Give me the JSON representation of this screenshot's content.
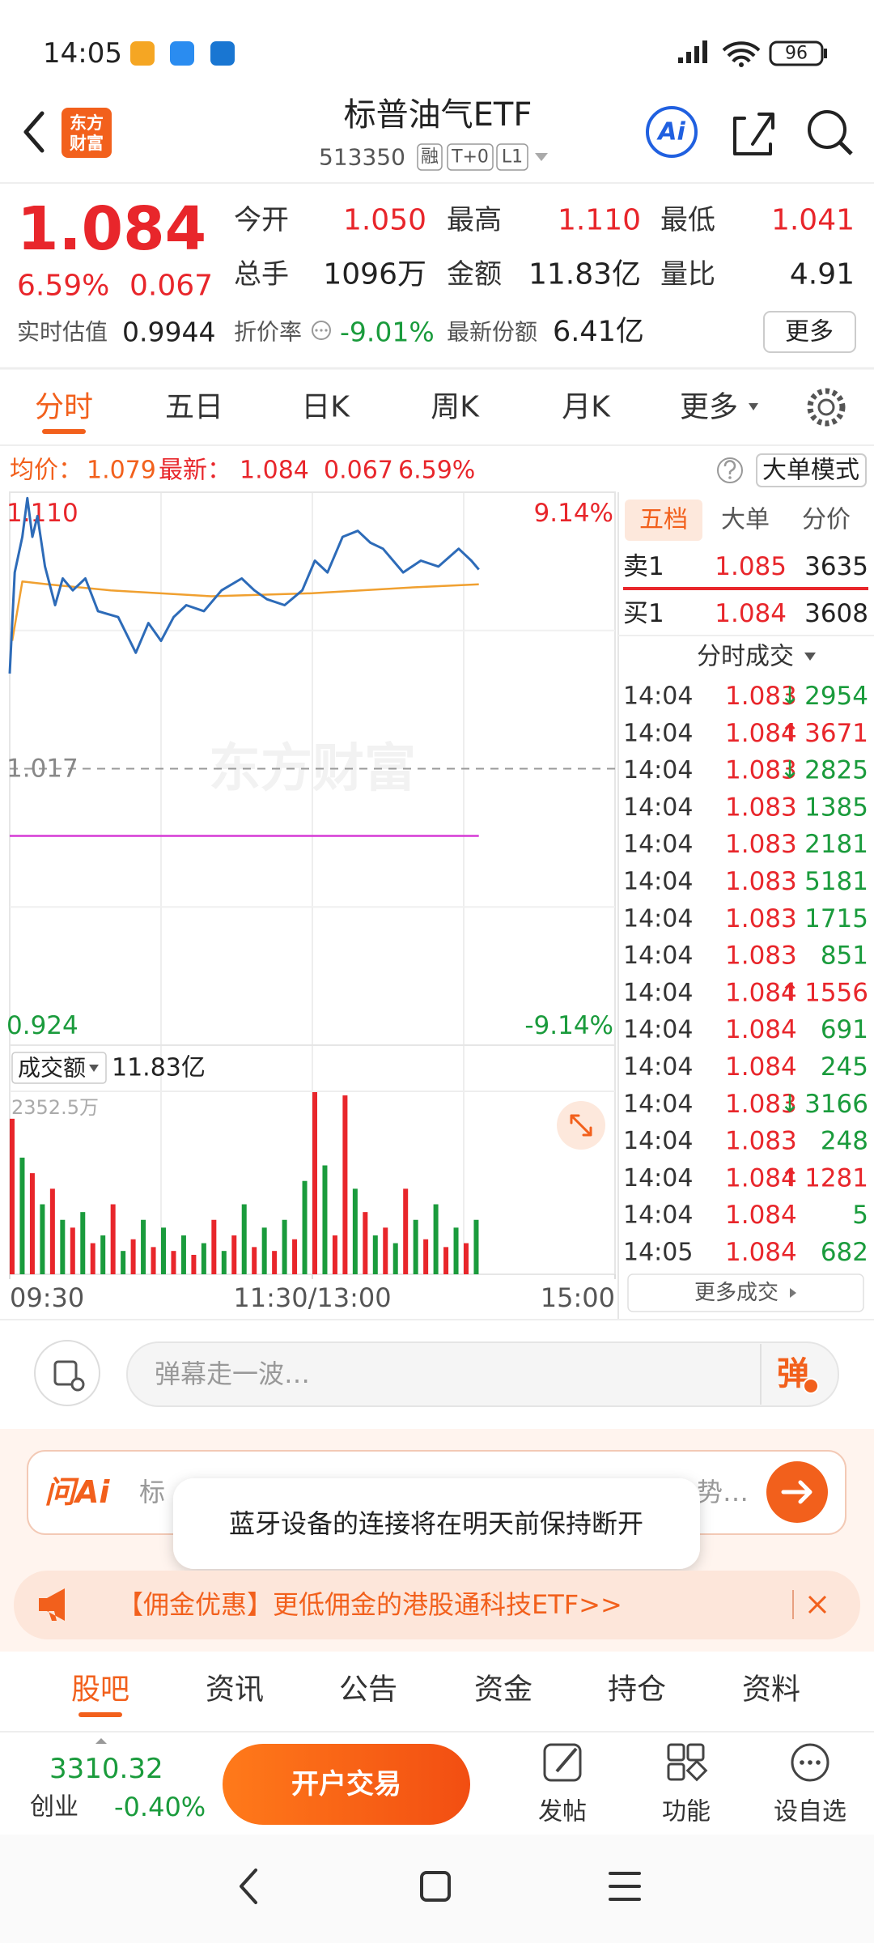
{
  "status_bar": {
    "time": "14:05",
    "battery": "96"
  },
  "header": {
    "logo": [
      "东方",
      "财富"
    ],
    "title": "标普油气ETF",
    "code": "513350",
    "badges": [
      "融",
      "T+0",
      "L1"
    ],
    "ai": "Ai"
  },
  "quote": {
    "price": "1.084",
    "change_pct": "6.59%",
    "change": "0.067",
    "stats": [
      {
        "label": "今开",
        "value": "1.050",
        "color": "#e8262b"
      },
      {
        "label": "最高",
        "value": "1.110",
        "color": "#e8262b"
      },
      {
        "label": "最低",
        "value": "1.041",
        "color": "#e8262b"
      },
      {
        "label": "总手",
        "value": "1096万",
        "color": "#222222"
      },
      {
        "label": "金额",
        "value": "11.83亿",
        "color": "#222222"
      },
      {
        "label": "量比",
        "value": "4.91",
        "color": "#222222"
      }
    ],
    "estimate_label": "实时估值",
    "estimate": "0.9944",
    "discount_label": "折价率",
    "discount": "-9.01%",
    "shares_label": "最新份额",
    "shares": "6.41亿",
    "more": "更多"
  },
  "tabs": {
    "items": [
      "分时",
      "五日",
      "日K",
      "周K",
      "月K",
      "更多"
    ],
    "active": 0
  },
  "summary": {
    "avg_label": "均价：",
    "avg": "1.079",
    "last_label": "最新：",
    "last": "1.084",
    "change": "0.067",
    "change_pct": "6.59%",
    "big_order": "大单模式"
  },
  "chart_data": [
    {
      "type": "line",
      "watermark": "东方财富",
      "xlim": [
        0,
        240
      ],
      "ylim": [
        0.924,
        1.11
      ],
      "yticks": [
        {
          "value": 1.11,
          "label": "1.110"
        },
        1.017,
        0.924
      ],
      "y2lim": [
        -9.14,
        9.14
      ],
      "y2ticks": [
        {
          "value": 9.14,
          "label": "9.14%"
        },
        {
          "value": -9.14,
          "label": "-9.14%"
        }
      ],
      "iopv": {
        "value": 0.9944,
        "color": "#d63ad6"
      },
      "series": [
        {
          "color": "#2d6bb8",
          "x": [
            0,
            2,
            5,
            7,
            9,
            11,
            14,
            18,
            21,
            25,
            30,
            35,
            43,
            50,
            55,
            60,
            65,
            70,
            77,
            84,
            92,
            97,
            102,
            109,
            116,
            121,
            126,
            132,
            138,
            143,
            148,
            156,
            163,
            170,
            178,
            183,
            186
          ],
          "values": [
            1.049,
            1.083,
            1.095,
            1.108,
            1.095,
            1.102,
            1.085,
            1.072,
            1.081,
            1.077,
            1.081,
            1.07,
            1.068,
            1.056,
            1.066,
            1.06,
            1.068,
            1.072,
            1.07,
            1.077,
            1.081,
            1.077,
            1.074,
            1.072,
            1.077,
            1.087,
            1.083,
            1.095,
            1.097,
            1.093,
            1.091,
            1.083,
            1.087,
            1.085,
            1.091,
            1.087,
            1.084
          ]
        },
        {
          "color": "#f0a030",
          "x": [
            1,
            5,
            15,
            40,
            80,
            120,
            160,
            186
          ],
          "values": [
            1.06,
            1.08,
            1.079,
            1.077,
            1.075,
            1.076,
            1.078,
            1.079
          ]
        }
      ]
    },
    {
      "type": "bar",
      "header": "成交额",
      "total": "11.83亿",
      "xlim": [
        0,
        240
      ],
      "ylim": [
        0,
        2352.5
      ],
      "yticks": [
        {
          "value": 2352.5,
          "label": "2352.5万"
        }
      ],
      "xticks": [
        {
          "value": 0,
          "label": "09:30"
        },
        {
          "value": 120,
          "label": "11:30/13:00"
        },
        {
          "value": 240,
          "label": "15:00"
        }
      ],
      "series": [
        {
          "color": "#e8262b",
          "x": [
            0,
            8,
            16,
            24,
            32,
            40,
            48,
            56,
            64,
            72,
            80,
            88,
            96,
            104,
            112,
            120,
            128,
            132,
            140,
            148,
            156,
            164,
            172,
            180
          ],
          "values": [
            2000,
            1300,
            1100,
            600,
            400,
            900,
            450,
            350,
            300,
            250,
            700,
            500,
            350,
            300,
            450,
            2352.5,
            500,
            2300,
            800,
            600,
            1100,
            450,
            350,
            400
          ]
        },
        {
          "color": "#1a9b3c",
          "x": [
            4,
            12,
            20,
            28,
            36,
            44,
            52,
            60,
            68,
            76,
            84,
            92,
            100,
            108,
            116,
            124,
            136,
            144,
            152,
            160,
            168,
            176,
            184
          ],
          "values": [
            1500,
            900,
            700,
            800,
            500,
            300,
            700,
            600,
            500,
            400,
            300,
            900,
            600,
            700,
            1200,
            1400,
            1100,
            500,
            400,
            700,
            900,
            600,
            700
          ]
        }
      ]
    }
  ],
  "order_book": {
    "tabs": [
      "五档",
      "大单",
      "分价"
    ],
    "active": 0,
    "asks": [
      {
        "label": "卖1",
        "price": "1.085",
        "volume": "3635"
      }
    ],
    "bids": [
      {
        "label": "买1",
        "price": "1.084",
        "volume": "3608"
      }
    ]
  },
  "trades": {
    "title": "分时成交",
    "more": "更多成交",
    "rows": [
      {
        "time": "14:04",
        "price": "1.083",
        "arrow": "↓",
        "volume": "2954",
        "color": "#1a9b3c"
      },
      {
        "time": "14:04",
        "price": "1.084",
        "arrow": "↑",
        "volume": "3671",
        "color": "#e8262b"
      },
      {
        "time": "14:04",
        "price": "1.083",
        "arrow": "↓",
        "volume": "2825",
        "color": "#1a9b3c"
      },
      {
        "time": "14:04",
        "price": "1.083",
        "volume": "1385",
        "color": "#1a9b3c"
      },
      {
        "time": "14:04",
        "price": "1.083",
        "volume": "2181",
        "color": "#1a9b3c"
      },
      {
        "time": "14:04",
        "price": "1.083",
        "volume": "5181",
        "color": "#1a9b3c"
      },
      {
        "time": "14:04",
        "price": "1.083",
        "volume": "1715",
        "color": "#1a9b3c"
      },
      {
        "time": "14:04",
        "price": "1.083",
        "volume": "851",
        "color": "#1a9b3c"
      },
      {
        "time": "14:04",
        "price": "1.084",
        "arrow": "↑",
        "volume": "1556",
        "color": "#e8262b"
      },
      {
        "time": "14:04",
        "price": "1.084",
        "volume": "691",
        "color": "#1a9b3c"
      },
      {
        "time": "14:04",
        "price": "1.084",
        "volume": "245",
        "color": "#1a9b3c"
      },
      {
        "time": "14:04",
        "price": "1.083",
        "arrow": "↓",
        "volume": "3166",
        "color": "#1a9b3c"
      },
      {
        "time": "14:04",
        "price": "1.083",
        "volume": "248",
        "color": "#1a9b3c"
      },
      {
        "time": "14:04",
        "price": "1.084",
        "arrow": "↑",
        "volume": "1281",
        "color": "#e8262b"
      },
      {
        "time": "14:04",
        "price": "1.084",
        "volume": "5",
        "color": "#1a9b3c"
      },
      {
        "time": "14:05",
        "price": "1.084",
        "volume": "682",
        "color": "#1a9b3c"
      }
    ]
  },
  "danmaku": {
    "placeholder": "弹幕走一波…",
    "button": "弹"
  },
  "ask_ai": {
    "logo": "问Ai",
    "text_start": "标",
    "text_end": "势…"
  },
  "toast": "蓝牙设备的连接将在明天前保持断开",
  "banner": "【佣金优惠】更低佣金的港股通科技ETF>>",
  "bottom_tabs": {
    "items": [
      "股吧",
      "资讯",
      "公告",
      "资金",
      "持仓",
      "资料"
    ],
    "active": 0
  },
  "footer": {
    "index_value": "3310.32",
    "index_name": "创业",
    "index_change": "-0.40%",
    "trade_button": "开户交易",
    "actions": [
      "发帖",
      "功能",
      "设自选"
    ]
  }
}
